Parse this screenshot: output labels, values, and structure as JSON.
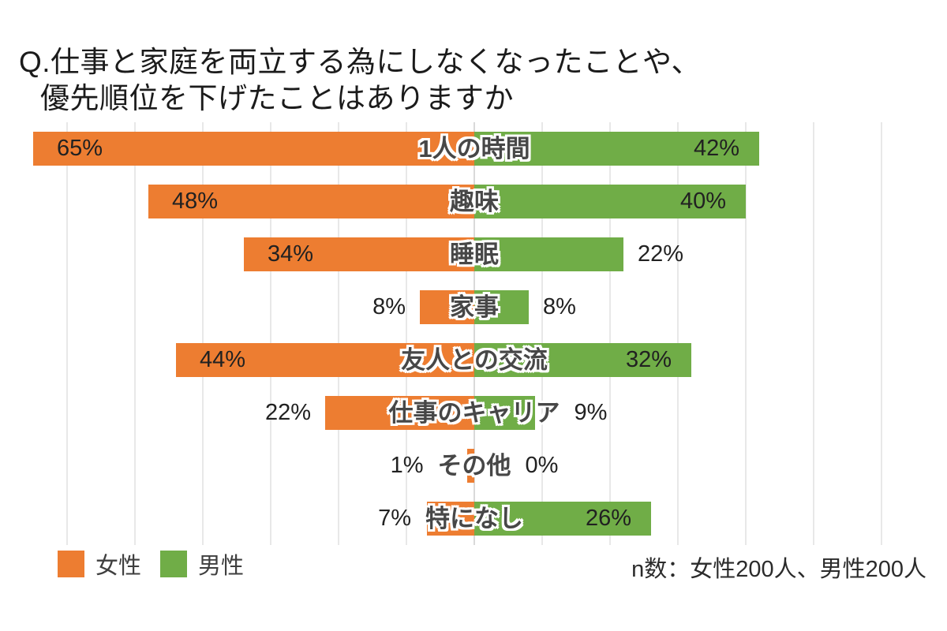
{
  "title": {
    "line1": "Q.仕事と家庭を両立する為にしなくなったことや、",
    "line2": "優先順位を下げたことはありますか"
  },
  "legend": [
    {
      "label": "女性",
      "color": "#ED7D31"
    },
    {
      "label": "男性",
      "color": "#70AD47"
    }
  ],
  "footnote": "n数：女性200人、男性200人",
  "chart_data": {
    "type": "bar",
    "orientation": "horizontal-diverging",
    "title": "Q.仕事と家庭を両立する為にしなくなったことや、優先順位を下げたことはありますか",
    "categories": [
      "1人の時間",
      "趣味",
      "睡眠",
      "家事",
      "友人との交流",
      "仕事のキャリア",
      "その他",
      "特になし"
    ],
    "series": [
      {
        "name": "女性",
        "direction": "left",
        "color": "#ED7D31",
        "values": [
          65,
          48,
          34,
          8,
          44,
          22,
          1,
          7
        ],
        "labels": [
          "65%",
          "48%",
          "34%",
          "8%",
          "44%",
          "22%",
          "1%",
          "7%"
        ],
        "label_inside": [
          true,
          true,
          true,
          false,
          true,
          false,
          false,
          false
        ]
      },
      {
        "name": "男性",
        "direction": "right",
        "color": "#70AD47",
        "values": [
          42,
          40,
          22,
          8,
          32,
          9,
          0,
          26
        ],
        "labels": [
          "42%",
          "40%",
          "22%",
          "8%",
          "32%",
          "9%",
          "0%",
          "26%"
        ],
        "label_inside": [
          true,
          true,
          false,
          false,
          true,
          false,
          false,
          true
        ]
      }
    ],
    "value_unit": "%",
    "axis": {
      "center_value": 0,
      "gridline_every_pct": 10,
      "max_pct_each_side": 60,
      "grid": true
    },
    "legend_position": "bottom-left",
    "n_note": "n数：女性200人、男性200人"
  }
}
